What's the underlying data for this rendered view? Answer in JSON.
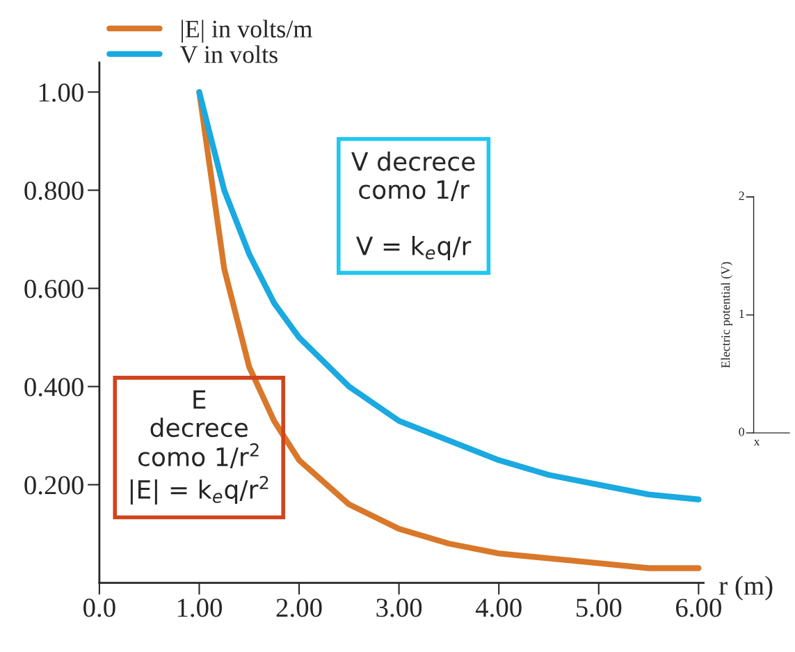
{
  "chart_data": [
    {
      "type": "line",
      "xlabel": "r (m)",
      "legend": "top left",
      "grid": false,
      "line_style": "solid",
      "marker": "none",
      "x": [
        1,
        1.25,
        1.5,
        1.75,
        2,
        2.5,
        3,
        3.5,
        4,
        4.5,
        5,
        5.5,
        6
      ],
      "series": [
        {
          "name": "|E| in volts/m",
          "color": "#d9782a",
          "values": [
            1.0,
            0.64,
            0.44,
            0.33,
            0.25,
            0.16,
            0.11,
            0.08,
            0.06,
            0.05,
            0.04,
            0.03,
            0.03
          ]
        },
        {
          "name": "V in volts",
          "color": "#1aa9e0",
          "values": [
            1.0,
            0.8,
            0.67,
            0.57,
            0.5,
            0.4,
            0.33,
            0.29,
            0.25,
            0.22,
            0.2,
            0.18,
            0.17
          ]
        }
      ],
      "xlim": [
        0,
        6.05
      ],
      "ylim": [
        0,
        1.06
      ],
      "xticks": [
        {
          "value": 0,
          "label": "0.0"
        },
        {
          "value": 1,
          "label": "1.00"
        },
        {
          "value": 2,
          "label": "2.00"
        },
        {
          "value": 3,
          "label": "3.00"
        },
        {
          "value": 4,
          "label": "4.00"
        },
        {
          "value": 5,
          "label": "5.00"
        },
        {
          "value": 6,
          "label": "6.00"
        }
      ],
      "yticks": [
        {
          "value": 0.2,
          "label": "0.200"
        },
        {
          "value": 0.4,
          "label": "0.400"
        },
        {
          "value": 0.6,
          "label": "0.600"
        },
        {
          "value": 0.8,
          "label": "0.800"
        },
        {
          "value": 1.0,
          "label": "1.00"
        }
      ],
      "annotations": [
        "V decrece\ncomo 1/r\n\nV = k$_{e}$q/r",
        "E\ndecrece\ncomo 1/r$^{2}$\n|E| = k$_{e}$q/r$^{2}$"
      ]
    },
    {
      "type": "other",
      "ylabel": "Electric potential (V)",
      "xlabel": "x",
      "annotations": [
        "2",
        "1",
        "0"
      ]
    }
  ]
}
